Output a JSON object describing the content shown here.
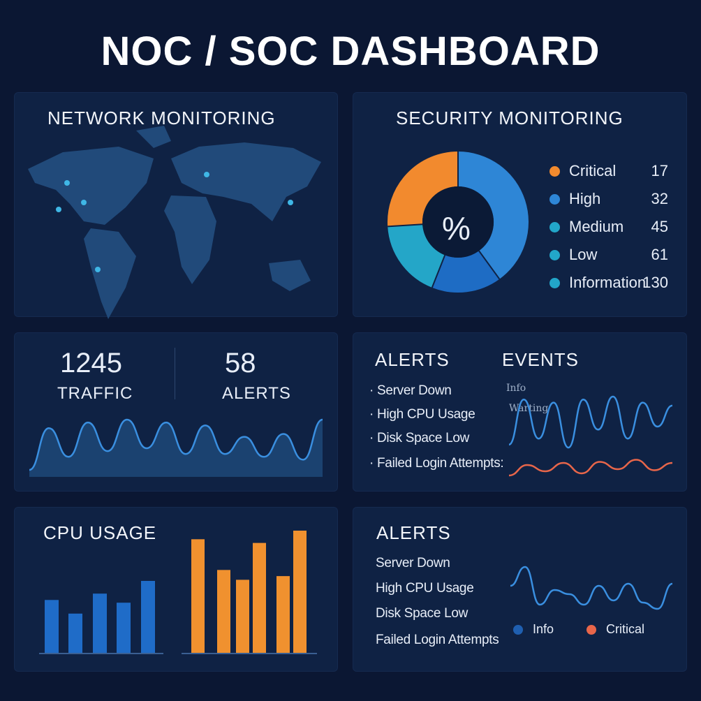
{
  "dashboard": {
    "title": "NOC / SOC DASHBOARD"
  },
  "network": {
    "title": "NETWORK MONITORING"
  },
  "security": {
    "title": "SECURITY MONITORING",
    "donut_label": "%",
    "legend": [
      {
        "label": "Critical",
        "value": "17",
        "color": "#f28a2e"
      },
      {
        "label": "High",
        "value": "32",
        "color": "#2e86d6"
      },
      {
        "label": "Medium",
        "value": "45",
        "color": "#22a6c9"
      },
      {
        "label": "Low",
        "value": "61",
        "color": "#22a6c9"
      },
      {
        "label": "Information",
        "value": "130",
        "color": "#22a6c9"
      }
    ]
  },
  "traffic": {
    "traffic_value": "1245",
    "traffic_label": "TRAFFIC",
    "alerts_value": "58",
    "alerts_label": "ALERTS"
  },
  "alerts_events": {
    "alerts_title": "ALERTS",
    "events_title": "EVENTS",
    "items": [
      "Server Down",
      "High CPU Usage",
      "Disk Space Low",
      "Failed Login Attempts:"
    ],
    "chart_labels": [
      "Info",
      "Warting"
    ]
  },
  "cpu": {
    "title": "CPU USAGE"
  },
  "alerts2": {
    "title": "ALERTS",
    "items": [
      "Server Down",
      "High CPU Usage",
      "Disk Space Low",
      "Failed Login Attempts"
    ],
    "legend": [
      {
        "label": "Info",
        "color": "#1f5fb0"
      },
      {
        "label": "Critical",
        "color": "#e8664a"
      }
    ]
  },
  "chart_data": [
    {
      "type": "pie",
      "values": [
        17,
        32,
        45,
        61,
        130
      ],
      "categories": [
        "Critical",
        "High",
        "Medium",
        "Low",
        "Information"
      ]
    },
    {
      "type": "area",
      "values": [
        0.35,
        0.85,
        0.35,
        0.95,
        0.45,
        1.0,
        0.5,
        0.95,
        0.4,
        0.9,
        0.4,
        0.7,
        0.35,
        0.75,
        0.3,
        1.0
      ]
    },
    {
      "type": "line",
      "series": [
        {
          "values": [
            0.2,
            0.95,
            0.3,
            0.9,
            0.15,
            0.95,
            0.45,
            1.0,
            0.3,
            0.9,
            0.5,
            0.85
          ]
        },
        {
          "values": [
            0.1,
            0.6,
            0.3,
            0.7,
            0.2,
            0.75,
            0.4,
            0.85,
            0.35,
            0.7
          ]
        }
      ]
    },
    {
      "type": "bar",
      "series": [
        {
          "values": [
            59,
            44,
            66,
            56,
            80
          ]
        },
        {
          "values": [
            93,
            68,
            60,
            90,
            63,
            100
          ]
        }
      ]
    },
    {
      "type": "line",
      "values": [
        0.55,
        1.0,
        0.1,
        0.45,
        0.35,
        0.1,
        0.55,
        0.2,
        0.6,
        0.15,
        0.0,
        0.6
      ]
    }
  ]
}
